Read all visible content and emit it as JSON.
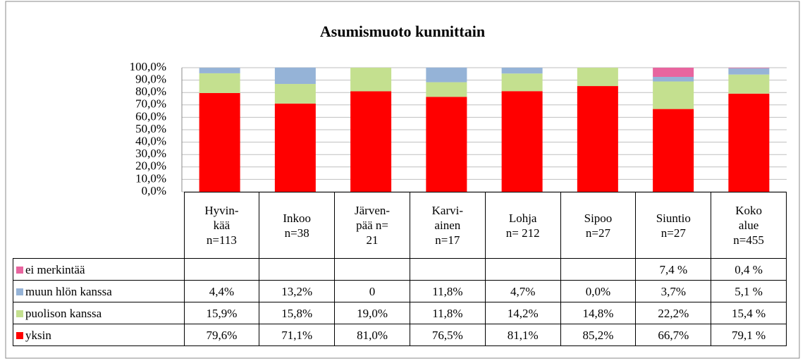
{
  "chart_data": {
    "type": "stacked_bar",
    "title": "Asumismuoto kunnittain",
    "categories": [
      "Hyvin-\nkää\nn=113",
      "Inkoo\nn=38",
      "Järven-\npää n=\n21",
      "Karvi-\nainen\nn=17",
      "Lohja\nn= 212",
      "Sipoo\nn=27",
      "Siuntio\nn=27",
      "Koko\nalue\nn=455"
    ],
    "series": [
      {
        "name": "ei merkintää",
        "color": "#e8659f",
        "values": [
          null,
          null,
          null,
          null,
          null,
          null,
          7.4,
          0.4
        ],
        "value_labels": [
          null,
          null,
          null,
          null,
          null,
          null,
          "7,4 %",
          "0,4 %"
        ]
      },
      {
        "name": "muun hlön kanssa",
        "color": "#95b3d7",
        "values": [
          4.4,
          13.2,
          0,
          11.8,
          4.7,
          0.0,
          3.7,
          5.1
        ],
        "value_labels": [
          "4,4%",
          "13,2%",
          "0",
          "11,8%",
          "4,7%",
          "0,0%",
          "3,7%",
          "5,1 %"
        ]
      },
      {
        "name": "puolison kanssa",
        "color": "#c4e08f",
        "values": [
          15.9,
          15.8,
          19.0,
          11.8,
          14.2,
          14.8,
          22.2,
          15.4
        ],
        "value_labels": [
          "15,9%",
          "15,8%",
          "19,0%",
          "11,8%",
          "14,2%",
          "14,8%",
          "22,2%",
          "15,4 %"
        ]
      },
      {
        "name": "yksin",
        "color": "#ff0000",
        "values": [
          79.6,
          71.1,
          81.0,
          76.5,
          81.1,
          85.2,
          66.7,
          79.1
        ],
        "value_labels": [
          "79,6%",
          "71,1%",
          "81,0%",
          "76,5%",
          "81,1%",
          "85,2%",
          "66,7%",
          "79,1 %"
        ]
      }
    ],
    "ylim": [
      0,
      100
    ],
    "yticks": [
      {
        "value": 0,
        "label": "0,0%"
      },
      {
        "value": 10,
        "label": "10,0%"
      },
      {
        "value": 20,
        "label": "20,0%"
      },
      {
        "value": 30,
        "label": "30,0%"
      },
      {
        "value": 40,
        "label": "40,0%"
      },
      {
        "value": 50,
        "label": "50,0%"
      },
      {
        "value": 60,
        "label": "60,0%"
      },
      {
        "value": 70,
        "label": "70,0%"
      },
      {
        "value": 80,
        "label": "80,0%"
      },
      {
        "value": 90,
        "label": "90,0%"
      },
      {
        "value": 100,
        "label": "100,0%"
      }
    ],
    "grid": true
  }
}
